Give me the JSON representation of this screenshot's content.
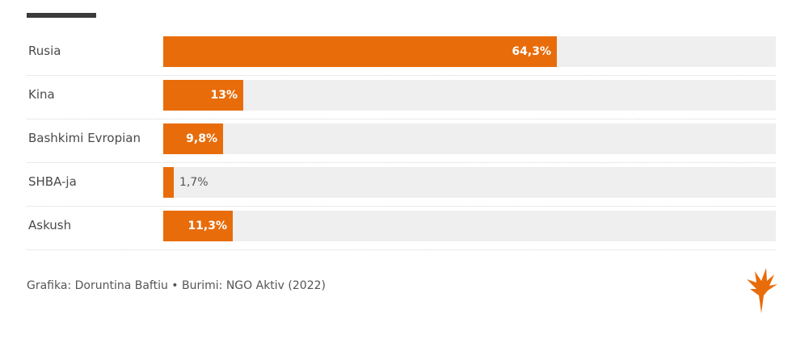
{
  "colors": {
    "bar": "#e86c0a",
    "track": "#efefef",
    "rule": "#3a3a3a",
    "logo": "#e86c0a"
  },
  "logo_icon": "torch-logo-icon",
  "chart_data": {
    "type": "bar",
    "orientation": "horizontal",
    "categories": [
      "Rusia",
      "Kina",
      "Bashkimi Evropian",
      "SHBA-ja",
      "Askush"
    ],
    "values": [
      64.3,
      13,
      9.8,
      1.7,
      11.3
    ],
    "value_labels": [
      "64,3%",
      "13%",
      "9,8%",
      "1,7%",
      "11,3%"
    ],
    "xlim": [
      0,
      100
    ],
    "grid": false,
    "legend": "none"
  },
  "footer": {
    "credit": "Grafika: Doruntina Baftiu • Burimi: NGO Aktiv (2022)"
  }
}
